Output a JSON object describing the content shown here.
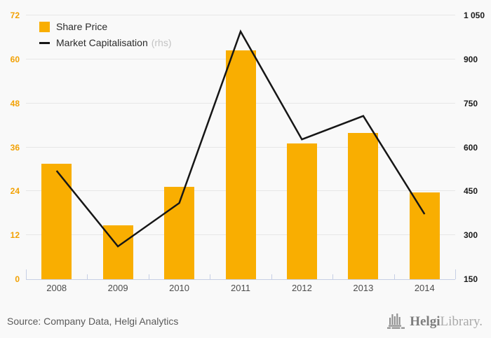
{
  "chart_data": {
    "type": "bar+line",
    "title": "",
    "categories": [
      "2008",
      "2009",
      "2010",
      "2011",
      "2012",
      "2013",
      "2014"
    ],
    "series": [
      {
        "name": "Share Price",
        "type": "bar",
        "axis": "left",
        "color": "#F9AE01",
        "values": [
          31.6,
          14.7,
          25.2,
          62.5,
          37.1,
          40.0,
          23.7
        ]
      },
      {
        "name": "Market Capitalisation",
        "suffix": "(rhs)",
        "type": "line",
        "axis": "right",
        "color": "#161616",
        "values": [
          520,
          262,
          410,
          995,
          627,
          707,
          372
        ]
      }
    ],
    "left_axis": {
      "min": 0,
      "max": 72,
      "step": 12,
      "ticks": [
        "0",
        "12",
        "24",
        "36",
        "48",
        "60",
        "72"
      ],
      "label_color": "#F2A104"
    },
    "right_axis": {
      "min": 150,
      "max": 1050,
      "step": 150,
      "ticks": [
        "150",
        "300",
        "450",
        "600",
        "750",
        "900",
        "1 050"
      ],
      "label_color": "#1a1a1a"
    },
    "grid": true,
    "legend_position": "top-left",
    "background": "#f9f9f9",
    "gridline_color": "#e7e7e7",
    "axisline_color": "#c6cfe5"
  },
  "legend": {
    "share_price": "Share Price",
    "market_cap": "Market Capitalisation",
    "market_cap_suffix": "(rhs)"
  },
  "footer": {
    "source": "Source: Company Data, Helgi Analytics",
    "brand_bold": "Helgi",
    "brand_light": "Library."
  }
}
